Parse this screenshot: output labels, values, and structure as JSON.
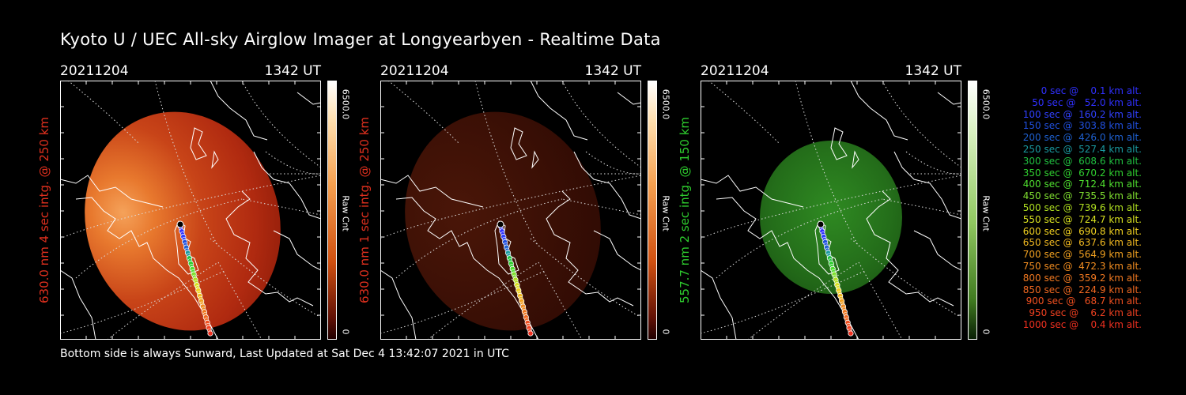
{
  "title": "Kyoto U / UEC All-sky Airglow Imager at Longyearbyen - Realtime Data",
  "footer": "Bottom side is always Sunward, Last Updated at Sat Dec  4 13:42:07 2021 in UTC",
  "colors": {
    "red_label": "#e0301e",
    "green_label": "#2ecc2e"
  },
  "panels": [
    {
      "date": "20211204",
      "time": "1342 UT",
      "ylabel": "630.0 nm 4 sec intg. @ 250 km",
      "cbar_max": "6500.0",
      "cbar_unit": "Raw Cnt",
      "cbar_min": "0",
      "scheme": "red-bright"
    },
    {
      "date": "20211204",
      "time": "1342 UT",
      "ylabel": "630.0 nm 1 sec intg. @ 250 km",
      "cbar_max": "6500.0",
      "cbar_unit": "Raw Cnt",
      "cbar_min": "0",
      "scheme": "red-dim"
    },
    {
      "date": "20211204",
      "time": "1342 UT",
      "ylabel": "557.7 nm 2 sec intg. @ 150 km",
      "cbar_max": "6500.0",
      "cbar_unit": "Raw Cnt",
      "cbar_min": "0",
      "scheme": "green"
    }
  ],
  "legend": [
    {
      "text": "   0 sec @    0.1 km alt.",
      "color": "#3030ff"
    },
    {
      "text": "  50 sec @   52.0 km alt.",
      "color": "#3030ff"
    },
    {
      "text": " 100 sec @  160.2 km alt.",
      "color": "#3040ff"
    },
    {
      "text": " 150 sec @  303.8 km alt.",
      "color": "#2050e0"
    },
    {
      "text": " 200 sec @  426.0 km alt.",
      "color": "#1e60d0"
    },
    {
      "text": " 250 sec @  527.4 km alt.",
      "color": "#1a9aa0"
    },
    {
      "text": " 300 sec @  608.6 km alt.",
      "color": "#20c040"
    },
    {
      "text": " 350 sec @  670.2 km alt.",
      "color": "#30d030"
    },
    {
      "text": " 400 sec @  712.4 km alt.",
      "color": "#50e030"
    },
    {
      "text": " 450 sec @  735.5 km alt.",
      "color": "#80e030"
    },
    {
      "text": " 500 sec @  739.6 km alt.",
      "color": "#b0e020"
    },
    {
      "text": " 550 sec @  724.7 km alt.",
      "color": "#d8e020"
    },
    {
      "text": " 600 sec @  690.8 km alt.",
      "color": "#f0d020"
    },
    {
      "text": " 650 sec @  637.6 km alt.",
      "color": "#f0b820"
    },
    {
      "text": " 700 sec @  564.9 km alt.",
      "color": "#f0a020"
    },
    {
      "text": " 750 sec @  472.3 km alt.",
      "color": "#f08c20"
    },
    {
      "text": " 800 sec @  359.2 km alt.",
      "color": "#f07820"
    },
    {
      "text": " 850 sec @  224.9 km alt.",
      "color": "#f06820"
    },
    {
      "text": " 900 sec @   68.7 km alt.",
      "color": "#f05020"
    },
    {
      "text": " 950 sec @    6.2 km alt.",
      "color": "#f04020"
    },
    {
      "text": "1000 sec @    0.4 km alt.",
      "color": "#f03020"
    }
  ]
}
